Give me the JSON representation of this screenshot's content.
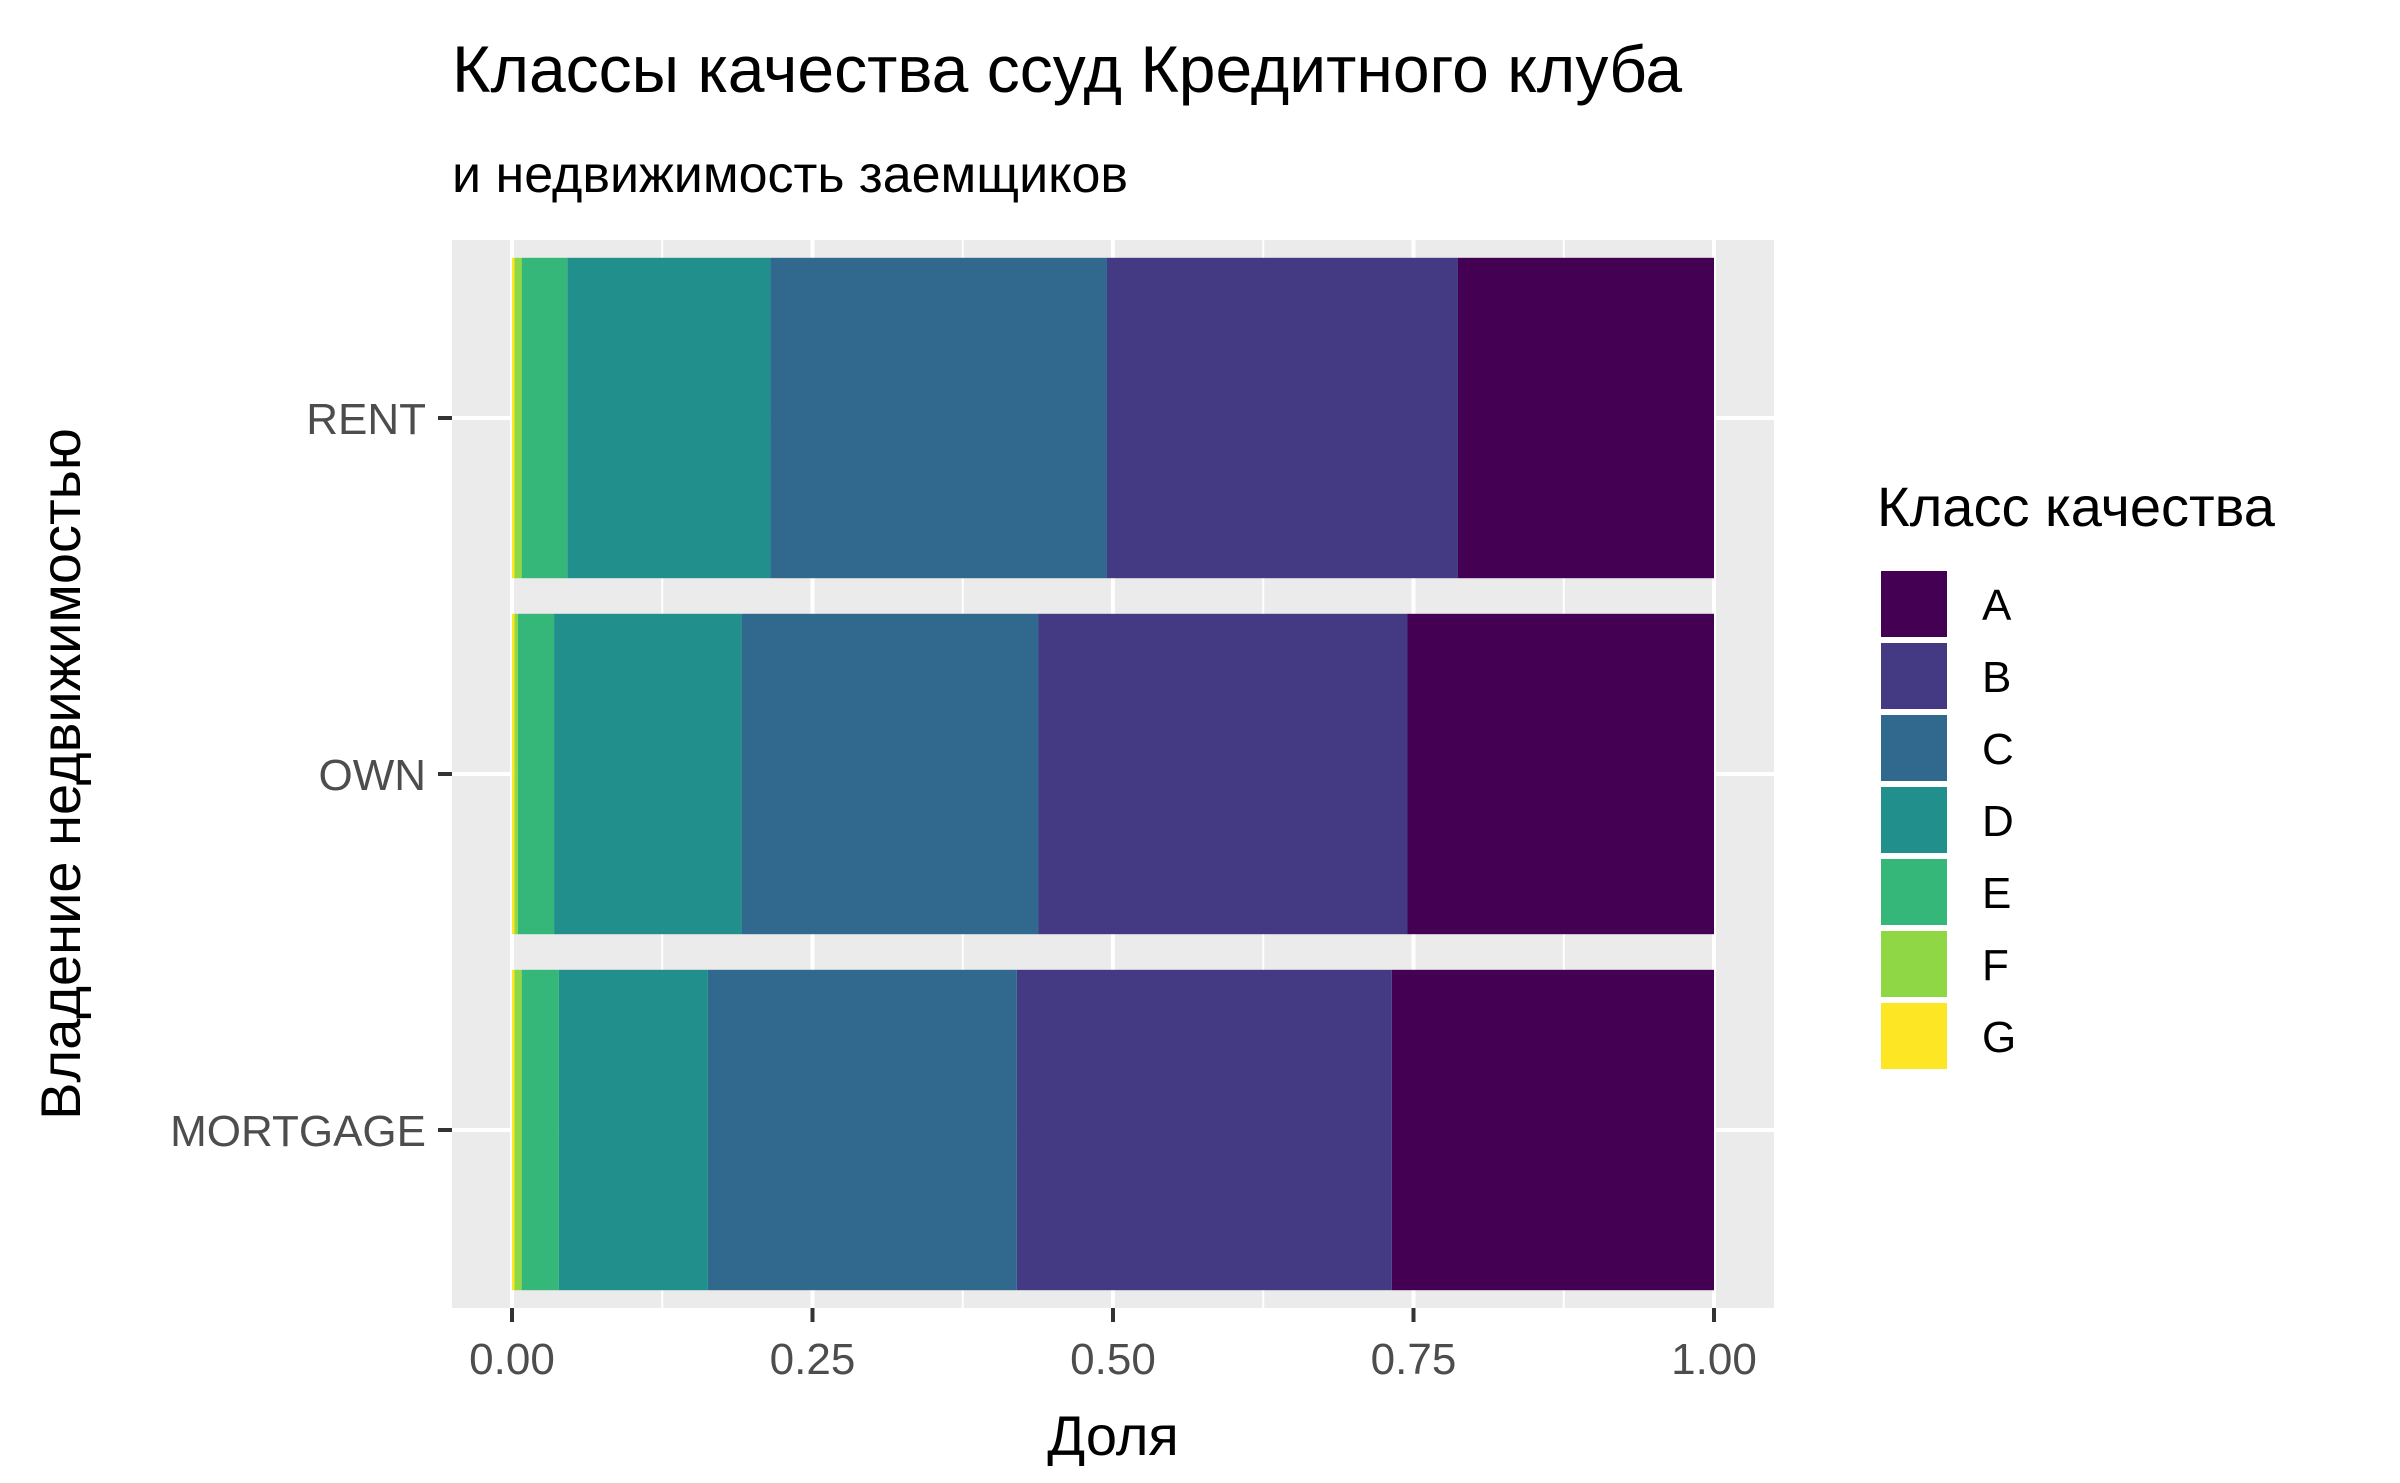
{
  "chart_data": {
    "type": "bar",
    "orientation": "horizontal",
    "stacked": "fill",
    "title": "Классы качества ссуд Кредитного клуба",
    "subtitle": "и недвижимость заемщиков",
    "xlabel": "Доля",
    "ylabel": "Владение недвижимостью",
    "xlim": [
      0,
      1
    ],
    "x_ticks": [
      "0.00",
      "0.25",
      "0.50",
      "0.75",
      "1.00"
    ],
    "categories": [
      "RENT",
      "OWN",
      "MORTGAGE"
    ],
    "legend": {
      "title": "Класс качества",
      "position": "right"
    },
    "grid": true,
    "series": [
      {
        "name": "A",
        "color": "#440154",
        "values": [
          0.213,
          0.255,
          0.268
        ]
      },
      {
        "name": "B",
        "color": "#443a83",
        "values": [
          0.292,
          0.307,
          0.312
        ]
      },
      {
        "name": "C",
        "color": "#31688e",
        "values": [
          0.28,
          0.247,
          0.257
        ]
      },
      {
        "name": "D",
        "color": "#21908c",
        "values": [
          0.169,
          0.156,
          0.124
        ]
      },
      {
        "name": "E",
        "color": "#35b779",
        "values": [
          0.038,
          0.03,
          0.031
        ]
      },
      {
        "name": "F",
        "color": "#8fd744",
        "values": [
          0.006,
          0.003,
          0.006
        ]
      },
      {
        "name": "G",
        "color": "#fde725",
        "values": [
          0.002,
          0.002,
          0.002
        ]
      }
    ]
  }
}
